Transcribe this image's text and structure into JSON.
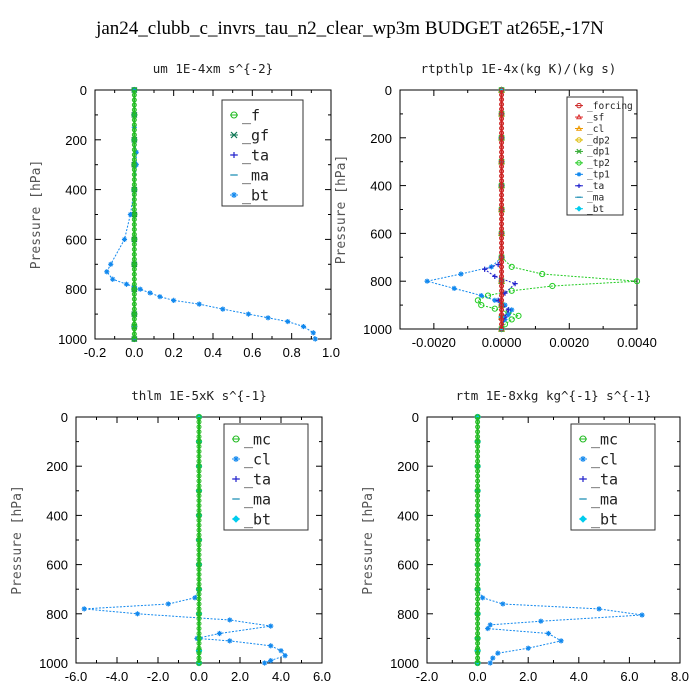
{
  "title": "jan24_clubb_c_invrs_tau_n2_clear_wp3m  BUDGET at265E,-17N",
  "chart_data": [
    {
      "type": "line",
      "title": "um   1E-4xm s^{-2}",
      "ylabel": "Pressure [hPa]",
      "xlim": [
        -0.2,
        1.0
      ],
      "ylim": [
        1000,
        0
      ],
      "xticks": [
        "-0.2",
        "0.0",
        "0.2",
        "0.4",
        "0.6",
        "0.8",
        "1.0"
      ],
      "xtick_values": [
        -0.2,
        0.0,
        0.2,
        0.4,
        0.6,
        0.8,
        1.0
      ],
      "yticks": [
        "0",
        "200",
        "400",
        "600",
        "800",
        "1000"
      ],
      "ytick_values": [
        0,
        200,
        400,
        600,
        800,
        1000
      ],
      "legend_position": "top-right",
      "legend_font": 15,
      "series": [
        {
          "name": "_f",
          "color": "#22bb22",
          "marker": "circle",
          "x": [
            0,
            0,
            0,
            0,
            0,
            0,
            0,
            0,
            0,
            0,
            0,
            0
          ],
          "y": [
            0,
            100,
            200,
            300,
            400,
            500,
            600,
            700,
            800,
            900,
            950,
            1000
          ]
        },
        {
          "name": "_gf",
          "color": "#117755",
          "marker": "x",
          "x": [
            0,
            0,
            0,
            0,
            0,
            0,
            0,
            0,
            0,
            0,
            0,
            0
          ],
          "y": [
            0,
            100,
            200,
            300,
            400,
            500,
            600,
            700,
            800,
            900,
            950,
            1000
          ]
        },
        {
          "name": "_ta",
          "color": "#2222cc",
          "marker": "plus",
          "x": [
            0,
            0,
            0,
            0,
            0,
            0,
            0,
            0,
            0,
            0,
            0,
            0
          ],
          "y": [
            0,
            100,
            200,
            300,
            400,
            500,
            600,
            700,
            800,
            900,
            950,
            1000
          ]
        },
        {
          "name": "_ma",
          "color": "#3399bb",
          "marker": "dash",
          "x": [
            0,
            0,
            0,
            0,
            0,
            0,
            0,
            0,
            0,
            0,
            0,
            0
          ],
          "y": [
            0,
            100,
            200,
            300,
            400,
            500,
            600,
            700,
            800,
            900,
            950,
            1000
          ]
        },
        {
          "name": "_bt",
          "color": "#1188ee",
          "marker": "star",
          "x": [
            0,
            0,
            0,
            0,
            0.01,
            0.01,
            0.0,
            -0.02,
            -0.05,
            -0.12,
            -0.14,
            -0.11,
            -0.04,
            0.0,
            0.03,
            0.08,
            0.13,
            0.2,
            0.33,
            0.45,
            0.58,
            0.68,
            0.78,
            0.86,
            0.91,
            0.92
          ],
          "y": [
            0,
            100,
            150,
            200,
            250,
            300,
            400,
            500,
            600,
            700,
            730,
            760,
            780,
            790,
            800,
            815,
            830,
            845,
            860,
            880,
            900,
            915,
            930,
            950,
            975,
            1000
          ]
        }
      ]
    },
    {
      "type": "line",
      "title": "rtpthlp   1E-4x(kg K)/(kg s)",
      "ylabel": "Pressure [hPa]",
      "xlim": [
        -0.003,
        0.004
      ],
      "ylim": [
        1000,
        0
      ],
      "xticks": [
        "-0.0020",
        "0.0000",
        "0.0020",
        "0.0040"
      ],
      "xtick_values": [
        -0.002,
        0.0,
        0.002,
        0.004
      ],
      "yticks": [
        "0",
        "200",
        "400",
        "600",
        "800",
        "1000"
      ],
      "ytick_values": [
        0,
        200,
        400,
        600,
        800,
        1000
      ],
      "legend_position": "top-right",
      "legend_font": 9.5,
      "series": [
        {
          "name": "_forcing",
          "color": "#cc2222",
          "marker": "circle",
          "x": [
            0,
            0,
            0,
            0,
            0,
            0,
            0,
            0,
            0,
            0,
            0,
            0
          ],
          "y": [
            0,
            100,
            200,
            300,
            400,
            500,
            600,
            700,
            800,
            900,
            950,
            1000
          ]
        },
        {
          "name": "_sf",
          "color": "#dd3333",
          "marker": "tri",
          "x": [
            0,
            0,
            0,
            0,
            0,
            0,
            0,
            0,
            0,
            0,
            0,
            0
          ],
          "y": [
            0,
            100,
            200,
            300,
            400,
            500,
            600,
            700,
            800,
            900,
            950,
            1000
          ]
        },
        {
          "name": "_cl",
          "color": "#ee9900",
          "marker": "tri",
          "x": [
            0,
            0,
            0,
            0,
            0,
            0,
            0,
            0,
            0,
            0,
            0,
            0
          ],
          "y": [
            0,
            100,
            200,
            300,
            400,
            500,
            600,
            700,
            800,
            900,
            950,
            1000
          ]
        },
        {
          "name": "_dp2",
          "color": "#ddbb00",
          "marker": "circle",
          "x": [
            0,
            0,
            0,
            0,
            0,
            0,
            0,
            0,
            0,
            0,
            0,
            0
          ],
          "y": [
            0,
            100,
            200,
            300,
            400,
            500,
            600,
            700,
            800,
            900,
            950,
            1000
          ]
        },
        {
          "name": "_dp1",
          "color": "#33aa33",
          "marker": "x",
          "x": [
            0,
            0,
            0,
            0,
            0,
            0,
            0,
            0,
            0,
            0,
            0,
            0
          ],
          "y": [
            0,
            100,
            200,
            300,
            400,
            500,
            600,
            700,
            800,
            900,
            950,
            1000
          ]
        },
        {
          "name": "_tp2",
          "color": "#22cc22",
          "marker": "circle",
          "x": [
            0,
            0,
            0,
            0,
            0.0003,
            0.0012,
            0.004,
            0.0015,
            0.0003,
            -0.0004,
            -0.0007,
            -0.0006,
            -0.0002,
            0.0002,
            0.0005,
            0.0003,
            0.0001,
            0
          ],
          "y": [
            0,
            200,
            400,
            700,
            740,
            770,
            800,
            820,
            840,
            860,
            880,
            900,
            915,
            930,
            945,
            960,
            980,
            1000
          ]
        },
        {
          "name": "_tp1",
          "color": "#1188ee",
          "marker": "star",
          "x": [
            0,
            0,
            0,
            0,
            -0.0003,
            -0.0012,
            -0.0022,
            -0.0014,
            -0.0006,
            -0.0002,
            0.0001,
            0.0003,
            0.0002,
            0.0001,
            0
          ],
          "y": [
            0,
            200,
            400,
            700,
            740,
            770,
            800,
            830,
            860,
            880,
            900,
            920,
            940,
            960,
            1000
          ]
        },
        {
          "name": "_ta",
          "color": "#2222cc",
          "marker": "plus",
          "x": [
            0,
            0,
            0,
            0,
            -0.0001,
            -0.0005,
            -0.0002,
            0.0004,
            0.0001,
            -0.0001,
            0.0002,
            0.0001,
            0
          ],
          "y": [
            0,
            200,
            400,
            700,
            730,
            750,
            780,
            810,
            850,
            880,
            920,
            950,
            1000
          ]
        },
        {
          "name": "_ma",
          "color": "#3399bb",
          "marker": "dash",
          "x": [
            0,
            0,
            0,
            0,
            0,
            0,
            0,
            0,
            0,
            0,
            0,
            0
          ],
          "y": [
            0,
            100,
            200,
            300,
            400,
            500,
            600,
            700,
            800,
            900,
            950,
            1000
          ]
        },
        {
          "name": "_bt",
          "color": "#00ccee",
          "marker": "diamond",
          "x": [
            0,
            0,
            0,
            0,
            0,
            0,
            0,
            0,
            0,
            0,
            0,
            0
          ],
          "y": [
            0,
            100,
            200,
            300,
            400,
            500,
            600,
            700,
            800,
            900,
            950,
            1000
          ]
        }
      ]
    },
    {
      "type": "line",
      "title": "thlm   1E-5xK s^{-1}",
      "ylabel": "Pressure [hPa]",
      "xlim": [
        -6.0,
        6.0
      ],
      "ylim": [
        1000,
        0
      ],
      "xticks": [
        "-6.0",
        "-4.0",
        "-2.0",
        "0.0",
        "2.0",
        "4.0",
        "6.0"
      ],
      "xtick_values": [
        -6.0,
        -4.0,
        -2.0,
        0.0,
        2.0,
        4.0,
        6.0
      ],
      "yticks": [
        "0",
        "200",
        "400",
        "600",
        "800",
        "1000"
      ],
      "ytick_values": [
        0,
        200,
        400,
        600,
        800,
        1000
      ],
      "legend_position": "top-right",
      "legend_font": 15,
      "series": [
        {
          "name": "_mc",
          "color": "#22bb22",
          "marker": "circle",
          "x": [
            0,
            0,
            0,
            0,
            0,
            0,
            0,
            0,
            0,
            0,
            0,
            0
          ],
          "y": [
            0,
            100,
            200,
            300,
            400,
            500,
            600,
            700,
            800,
            900,
            950,
            1000
          ]
        },
        {
          "name": "_cl",
          "color": "#1188ee",
          "marker": "star",
          "x": [
            0,
            0,
            0,
            0,
            0,
            -0.2,
            -1.5,
            -5.6,
            -3.0,
            1.5,
            3.5,
            1.0,
            -0.1,
            1.5,
            3.5,
            4.0,
            4.2,
            3.5,
            3.2
          ],
          "y": [
            0,
            200,
            400,
            600,
            700,
            735,
            760,
            780,
            800,
            825,
            850,
            880,
            900,
            910,
            930,
            950,
            970,
            990,
            1000
          ]
        },
        {
          "name": "_ta",
          "color": "#2222cc",
          "marker": "plus",
          "x": [
            0,
            0,
            0,
            0,
            0,
            0,
            0,
            0,
            0,
            0,
            0,
            0
          ],
          "y": [
            0,
            100,
            200,
            300,
            400,
            500,
            600,
            700,
            800,
            900,
            950,
            1000
          ]
        },
        {
          "name": "_ma",
          "color": "#3399bb",
          "marker": "dash",
          "x": [
            0,
            0,
            0,
            0,
            0,
            0,
            0,
            0,
            0,
            0,
            0,
            0
          ],
          "y": [
            0,
            100,
            200,
            300,
            400,
            500,
            600,
            700,
            800,
            900,
            950,
            1000
          ]
        },
        {
          "name": "_bt",
          "color": "#00ccee",
          "marker": "diamond",
          "x": [
            0,
            0,
            0,
            0,
            0,
            0,
            0,
            0,
            0,
            0,
            0,
            0
          ],
          "y": [
            0,
            100,
            200,
            300,
            400,
            500,
            600,
            700,
            800,
            900,
            950,
            1000
          ]
        }
      ]
    },
    {
      "type": "line",
      "title": "rtm   1E-8xkg kg^{-1} s^{-1}",
      "ylabel": "Pressure [hPa]",
      "xlim": [
        -2.0,
        8.0
      ],
      "ylim": [
        1000,
        0
      ],
      "xticks": [
        "-2.0",
        "0.0",
        "2.0",
        "4.0",
        "6.0",
        "8.0"
      ],
      "xtick_values": [
        -2.0,
        0.0,
        2.0,
        4.0,
        6.0,
        8.0
      ],
      "yticks": [
        "0",
        "200",
        "400",
        "600",
        "800",
        "1000"
      ],
      "ytick_values": [
        0,
        200,
        400,
        600,
        800,
        1000
      ],
      "legend_position": "top-right",
      "legend_font": 15,
      "series": [
        {
          "name": "_mc",
          "color": "#22bb22",
          "marker": "circle",
          "x": [
            0,
            0,
            0,
            0,
            0,
            0,
            0,
            0,
            0,
            0,
            0,
            0
          ],
          "y": [
            0,
            100,
            200,
            300,
            400,
            500,
            600,
            700,
            800,
            900,
            950,
            1000
          ]
        },
        {
          "name": "_cl",
          "color": "#1188ee",
          "marker": "star",
          "x": [
            0,
            0,
            0,
            0,
            0,
            0.2,
            1.0,
            4.8,
            6.5,
            2.5,
            0.5,
            0.4,
            2.8,
            3.3,
            2.0,
            0.8,
            0.6,
            0.5
          ],
          "y": [
            0,
            200,
            400,
            600,
            700,
            735,
            760,
            780,
            805,
            830,
            845,
            860,
            880,
            910,
            940,
            960,
            980,
            1000
          ]
        },
        {
          "name": "_ta",
          "color": "#2222cc",
          "marker": "plus",
          "x": [
            0,
            0,
            0,
            0,
            0,
            0,
            0,
            0,
            0,
            0,
            0,
            0
          ],
          "y": [
            0,
            100,
            200,
            300,
            400,
            500,
            600,
            700,
            800,
            900,
            950,
            1000
          ]
        },
        {
          "name": "_ma",
          "color": "#3399bb",
          "marker": "dash",
          "x": [
            0,
            0,
            0,
            0,
            0,
            0,
            0,
            0,
            0,
            0,
            0,
            0
          ],
          "y": [
            0,
            100,
            200,
            300,
            400,
            500,
            600,
            700,
            800,
            900,
            950,
            1000
          ]
        },
        {
          "name": "_bt",
          "color": "#00ccee",
          "marker": "diamond",
          "x": [
            0,
            0,
            0,
            0,
            0,
            0,
            0,
            0,
            0,
            0,
            0,
            0
          ],
          "y": [
            0,
            100,
            200,
            300,
            400,
            500,
            600,
            700,
            800,
            900,
            950,
            1000
          ]
        }
      ]
    }
  ]
}
